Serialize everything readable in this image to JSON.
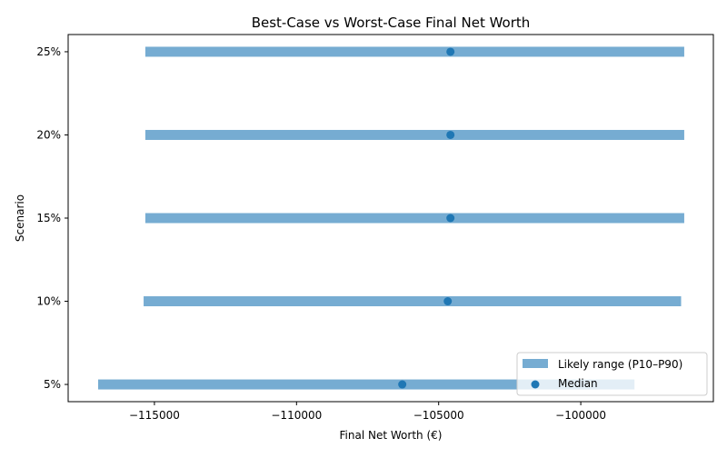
{
  "chart_data": {
    "type": "range-dot",
    "title": "Best-Case vs Worst-Case Final Net Worth",
    "xlabel": "Final Net Worth (€)",
    "ylabel": "Scenario",
    "categories": [
      "5%",
      "10%",
      "15%",
      "20%",
      "25%"
    ],
    "series": [
      {
        "name": "Likely range (P10–P90)",
        "low": [
          -116980,
          -115380,
          -115320,
          -115320,
          -115320
        ],
        "high": [
          -98110,
          -96470,
          -96360,
          -96360,
          -96360
        ],
        "color": "#76acd2"
      },
      {
        "name": "Median",
        "values": [
          -106280,
          -104680,
          -104585,
          -104585,
          -104585
        ],
        "color": "#1f77b4"
      }
    ],
    "xlim": [
      -118035,
      -95335
    ],
    "xticks": [
      -115000,
      -110000,
      -105000,
      -100000
    ],
    "xtick_labels": [
      "−115000",
      "−110000",
      "−105000",
      "−100000"
    ],
    "grid": false,
    "legend": "lower-right"
  }
}
